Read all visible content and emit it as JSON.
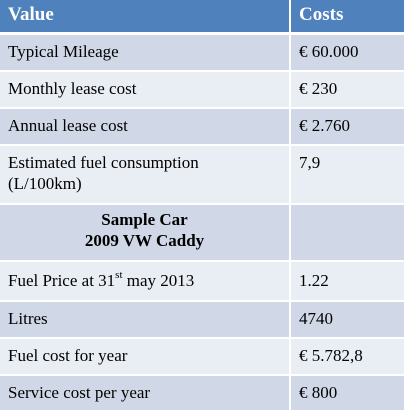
{
  "header": {
    "value_label": "Value",
    "costs_label": "Costs"
  },
  "rows": [
    {
      "label": "Typical Mileage",
      "value": "€ 60.000"
    },
    {
      "label": "Monthly lease cost",
      "value": "€ 230"
    },
    {
      "label": "Annual lease cost",
      "value": "€ 2.760"
    },
    {
      "label_line1": "Estimated fuel consumption",
      "label_line2": "(L/100km)",
      "value": "7,9"
    },
    {
      "label_line1": "Sample Car",
      "label_line2": "2009 VW Caddy",
      "value": ""
    },
    {
      "label_pre": "Fuel Price at 31",
      "label_sup": "st",
      "label_post": " may 2013",
      "value": "1.22"
    },
    {
      "label": "Litres",
      "value": "4740"
    },
    {
      "label": "Fuel cost for year",
      "value": "€ 5.782,8"
    },
    {
      "label": "Service cost per year",
      "value": "€ 800"
    }
  ],
  "colors": {
    "header_bg": "#4f81bd",
    "row_dark": "#d0d8e8",
    "row_light": "#e9edf4"
  }
}
